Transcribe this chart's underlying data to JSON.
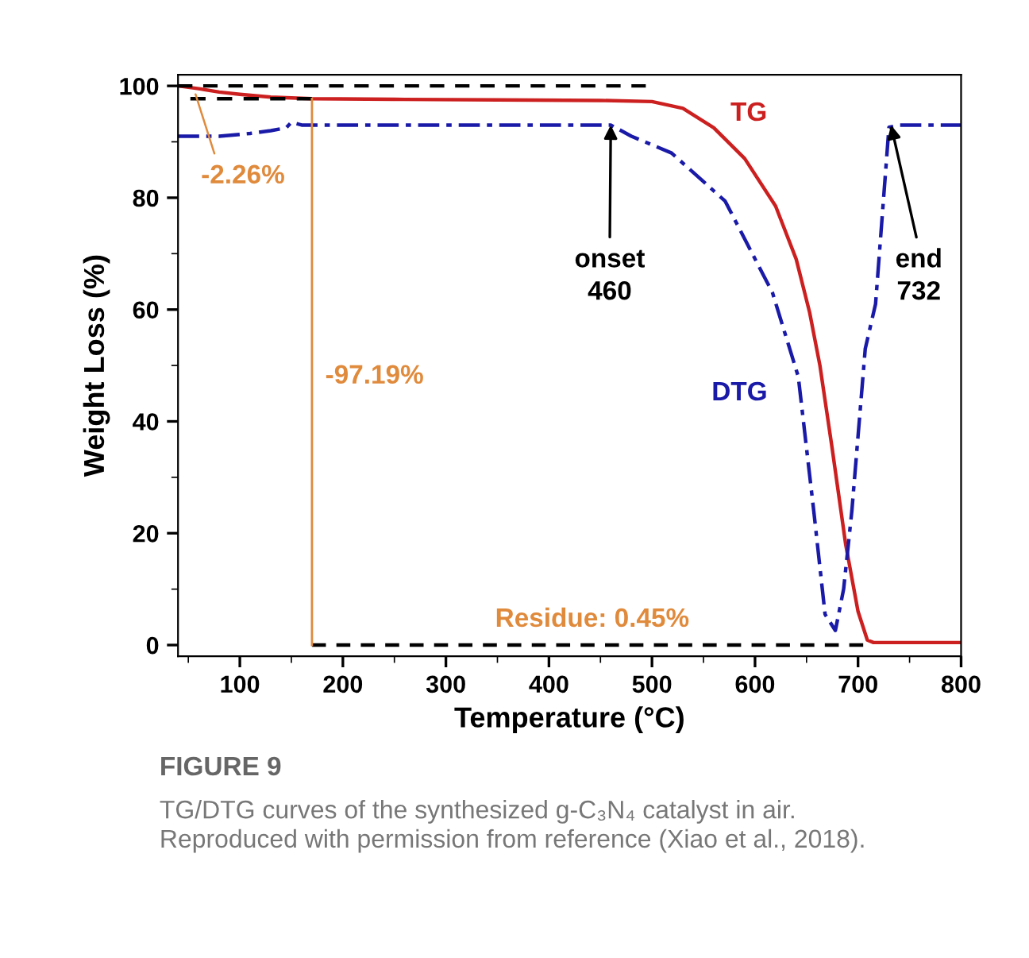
{
  "chart_data": {
    "type": "line",
    "xlabel": "Temperature (°C)",
    "ylabel": "Weight Loss (%)",
    "xlim": [
      40,
      800
    ],
    "ylim": [
      -2,
      102
    ],
    "xticks": [
      100,
      200,
      300,
      400,
      500,
      600,
      700,
      800
    ],
    "yticks": [
      0,
      20,
      40,
      60,
      80,
      100
    ],
    "grid": false,
    "legend": false,
    "series": [
      {
        "name": "TG",
        "color": "#cc2020",
        "line_style": "solid",
        "x": [
          40,
          60,
          80,
          100,
          130,
          170,
          250,
          350,
          450,
          500,
          530,
          560,
          590,
          620,
          640,
          653,
          663,
          675,
          688,
          700,
          709,
          715,
          750,
          800
        ],
        "values": [
          100,
          99.5,
          98.9,
          98.5,
          98.0,
          97.7,
          97.6,
          97.5,
          97.4,
          97.2,
          96.0,
          92.5,
          87,
          78.5,
          69,
          59.5,
          50,
          35,
          18,
          6,
          0.9,
          0.45,
          0.45,
          0.45
        ]
      },
      {
        "name": "DTG",
        "color": "#1a1aa8",
        "line_style": "dashdot",
        "x": [
          40,
          80,
          110,
          130,
          145,
          150,
          160,
          200,
          300,
          400,
          460,
          480,
          519,
          571,
          617,
          642,
          657,
          668,
          678,
          686,
          694,
          707,
          717,
          730,
          740,
          800
        ],
        "values": [
          91,
          91,
          91.5,
          92,
          92.5,
          93.5,
          93,
          93,
          93,
          93,
          93,
          91,
          88,
          79.4,
          63,
          48,
          24,
          5.5,
          2.6,
          10,
          24,
          53,
          61,
          92.6,
          93,
          93
        ]
      },
      {
        "color": "#000000",
        "line_style": "dashed",
        "x": [
          40,
          494
        ],
        "values": [
          100,
          100
        ]
      },
      {
        "color": "#000000",
        "line_style": "dashed",
        "x": [
          52,
          170
        ],
        "values": [
          97.7,
          97.7
        ]
      },
      {
        "color": "#000000",
        "line_style": "dashed",
        "x": [
          170,
          705
        ],
        "values": [
          0,
          0
        ]
      },
      {
        "color": "#e08a3c",
        "line_style": "solid",
        "x": [
          170,
          170
        ],
        "values": [
          97.7,
          0
        ]
      }
    ],
    "annotations": [
      {
        "text": "-2.26%",
        "x": 57,
        "y": 98.5
      },
      {
        "text": "-97.19%",
        "x": 170,
        "y": 48
      },
      {
        "text": "onset\n460",
        "x": 460,
        "y": 93
      },
      {
        "text": "end\n732",
        "x": 732,
        "y": 93
      },
      "Residue: 0.45%",
      "FIGURE 9",
      "TG/DTG curves of the synthesized g-C₃N₄ catalyst in air.\nReproduced with permission from reference (Xiao et al., 2018)."
    ]
  }
}
